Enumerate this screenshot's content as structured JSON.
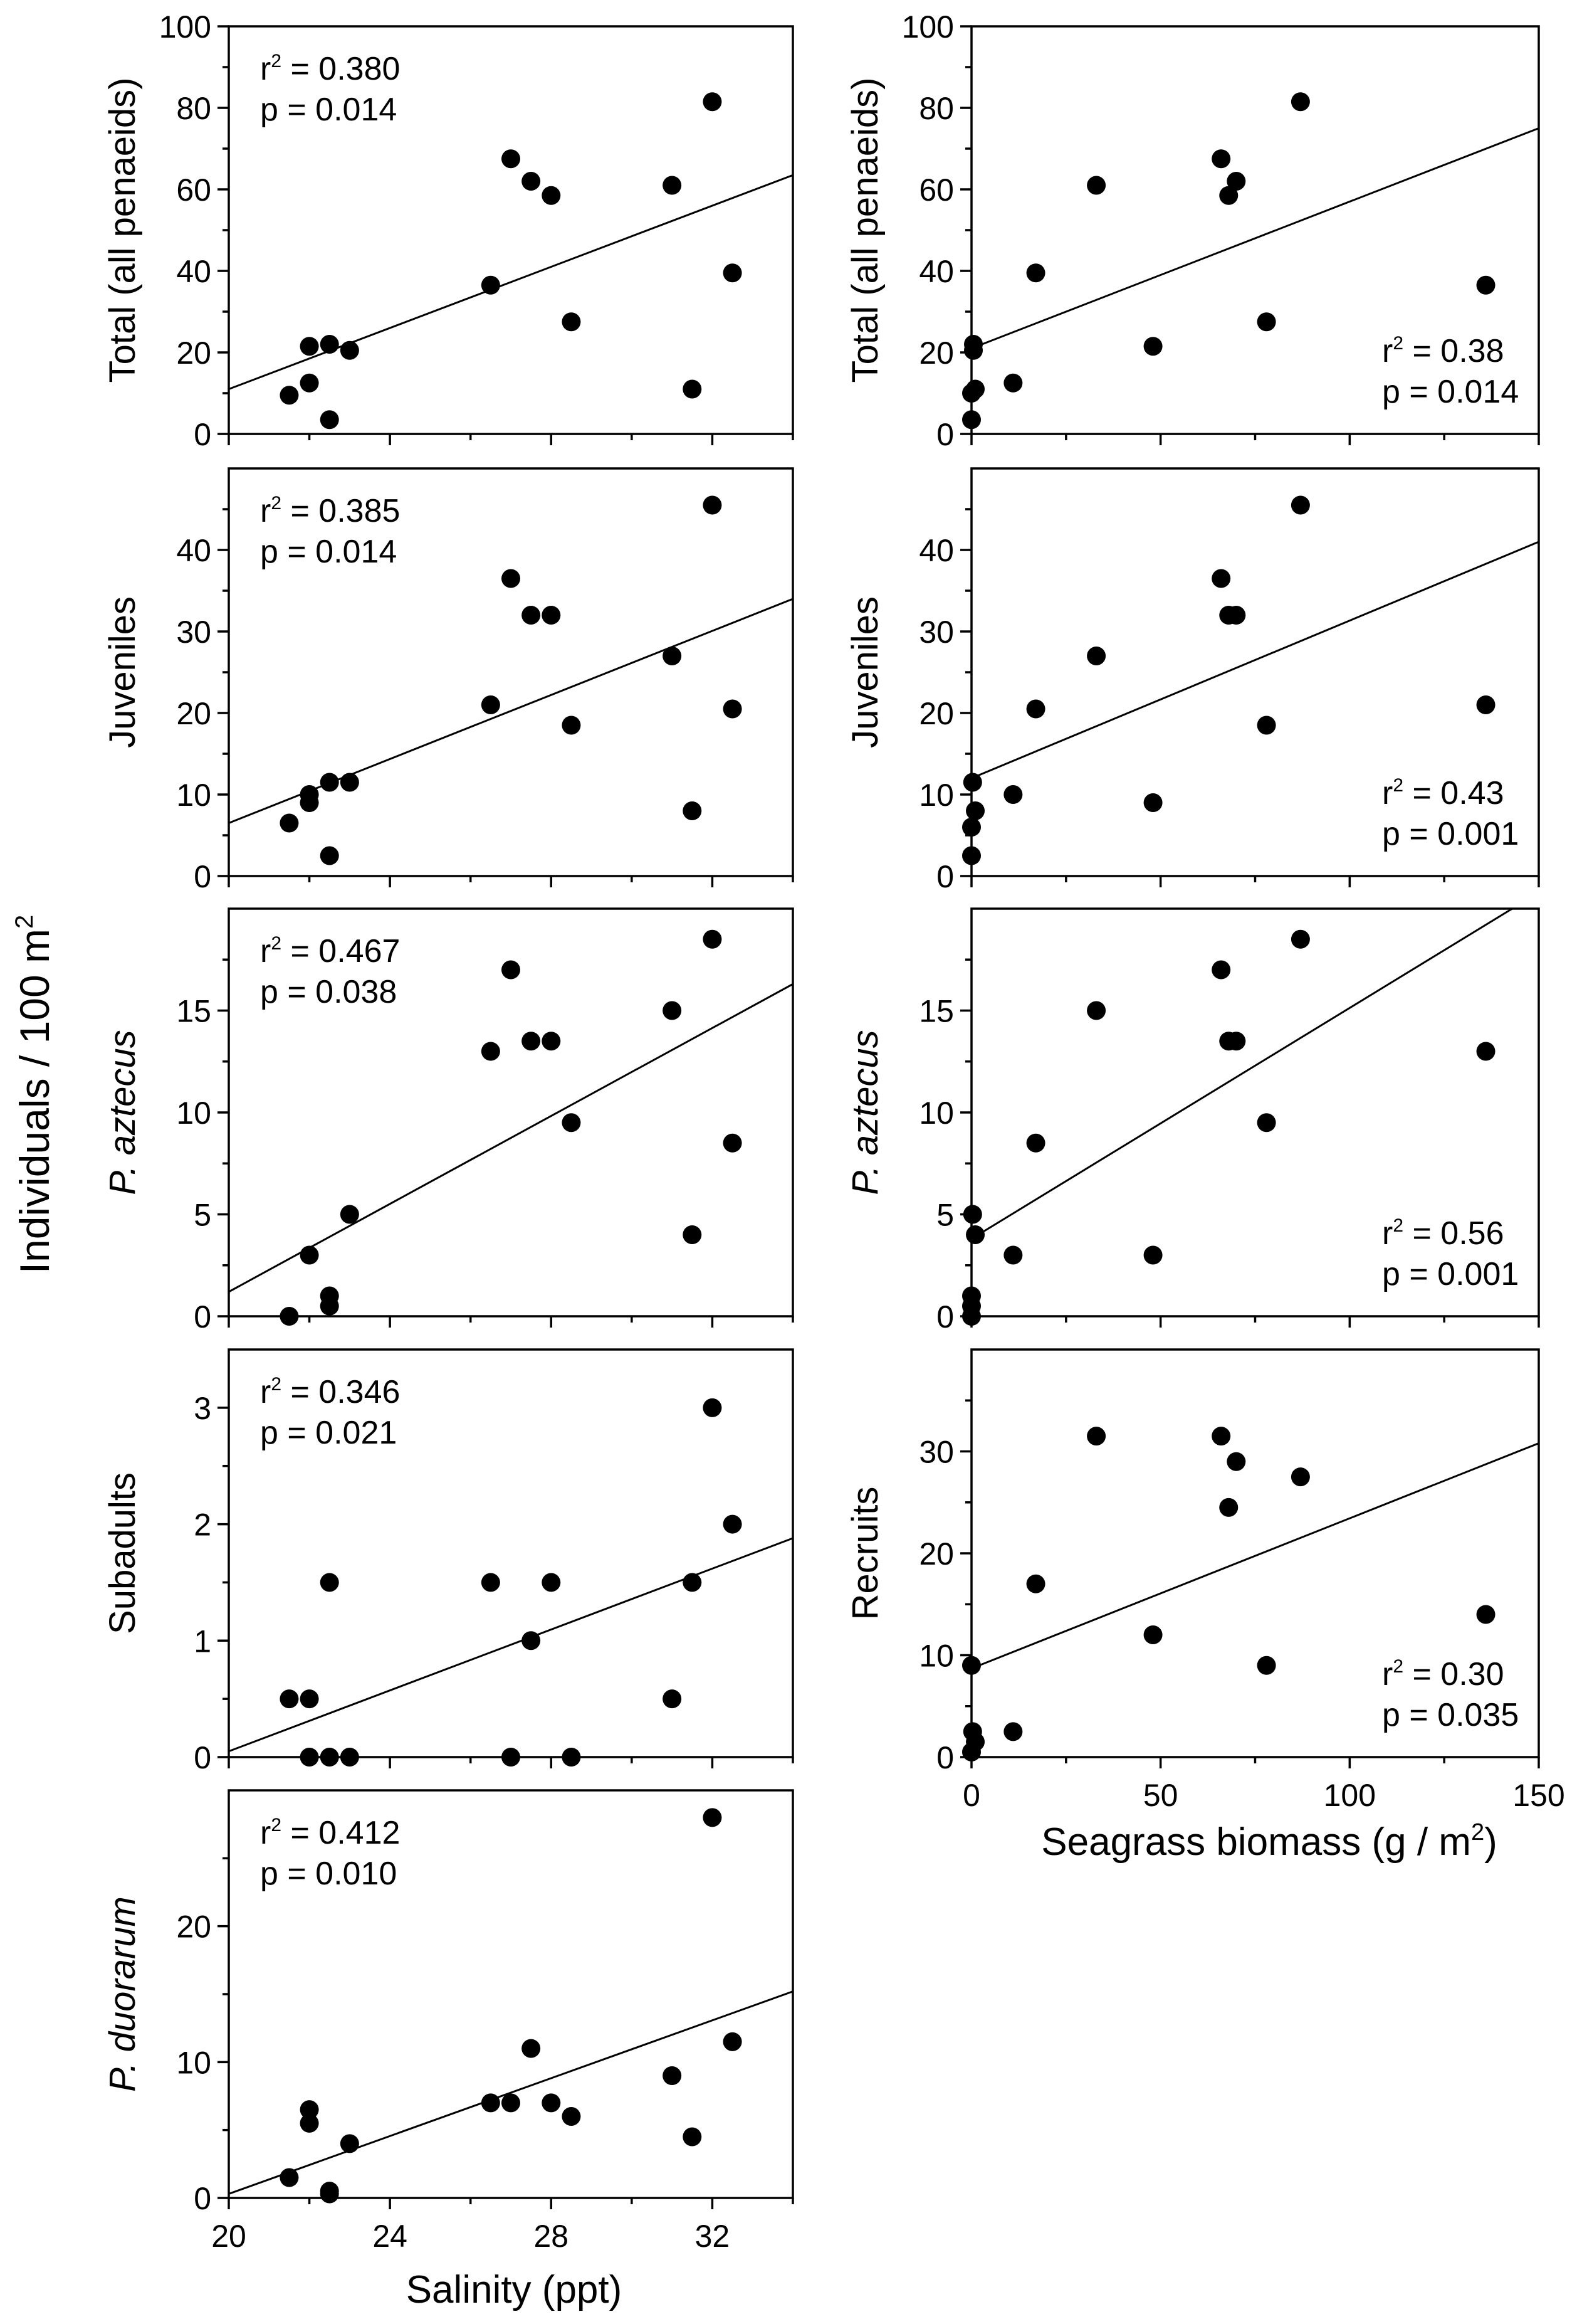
{
  "figure": {
    "shared_ylabel": "Individuals / 100 m",
    "shared_ylabel_sup": "2",
    "salinity_xlabel": "Salinity (ppt)",
    "seagrass_xlabel": "Seagrass biomass (g / m",
    "seagrass_xlabel_sup": "2",
    "seagrass_xlabel_tail": ")"
  },
  "chart_data": [
    {
      "id": "sal-total",
      "type": "scatter",
      "ylabel": "Total (all penaeids)",
      "xlabel": "",
      "xlim": [
        20,
        34
      ],
      "ylim": [
        0,
        100
      ],
      "xticks": [
        20,
        24,
        28,
        32
      ],
      "yticks": [
        0,
        20,
        40,
        60,
        80,
        100
      ],
      "yminor": [
        10,
        30,
        50,
        70,
        90
      ],
      "stat_r2": " = 0.380",
      "stat_p": "p = 0.014",
      "x": [
        21.5,
        22,
        22,
        22.5,
        22.5,
        23,
        26.5,
        27,
        27.5,
        28,
        28.5,
        31,
        31.5,
        32,
        32.5
      ],
      "y": [
        9.5,
        21.5,
        12.5,
        3.5,
        22,
        20.5,
        36.5,
        67.5,
        62,
        58.5,
        27.5,
        61,
        11,
        81.5,
        39.5
      ],
      "fit": [
        [
          20,
          11
        ],
        [
          34,
          63.5
        ]
      ]
    },
    {
      "id": "sal-juv",
      "type": "scatter",
      "ylabel": "Juveniles",
      "xlabel": "",
      "xlim": [
        20,
        34
      ],
      "ylim": [
        0,
        50
      ],
      "xticks": [
        20,
        24,
        28,
        32
      ],
      "yticks": [
        0,
        10,
        20,
        30,
        40
      ],
      "yminor": [
        5,
        15,
        25,
        35,
        45
      ],
      "stat_r2": " = 0.385",
      "stat_p": "p = 0.014",
      "x": [
        21.5,
        22,
        22,
        22.5,
        22.5,
        23,
        26.5,
        27,
        27.5,
        28,
        28.5,
        31,
        31.5,
        32,
        32.5
      ],
      "y": [
        6.5,
        9,
        10,
        2.5,
        11.5,
        11.5,
        21,
        36.5,
        32,
        32,
        18.5,
        27,
        8,
        45.5,
        20.5
      ],
      "fit": [
        [
          20,
          6.5
        ],
        [
          34,
          34
        ]
      ]
    },
    {
      "id": "sal-pazt",
      "type": "scatter",
      "ylabel": "P. aztecus",
      "ylabel_italic": true,
      "xlabel": "",
      "xlim": [
        20,
        34
      ],
      "ylim": [
        0,
        20
      ],
      "xticks": [
        20,
        24,
        28,
        32
      ],
      "yticks": [
        0,
        5,
        10,
        15
      ],
      "yminor": [
        2.5,
        7.5,
        12.5,
        17.5
      ],
      "stat_r2": " = 0.467",
      "stat_p": "p = 0.038",
      "x": [
        21.5,
        22,
        22.5,
        22.5,
        23,
        26.5,
        27,
        27.5,
        28,
        28.5,
        31,
        31.5,
        32,
        32.5
      ],
      "y": [
        0,
        3,
        0.5,
        1,
        5,
        13,
        17,
        13.5,
        13.5,
        9.5,
        15,
        4,
        18.5,
        8.5
      ],
      "fit": [
        [
          20,
          1.2
        ],
        [
          34,
          16.3
        ]
      ]
    },
    {
      "id": "sal-sub",
      "type": "scatter",
      "ylabel": "Subadults",
      "xlabel": "",
      "xlim": [
        20,
        34
      ],
      "ylim": [
        0,
        3.5
      ],
      "xticks": [
        20,
        24,
        28,
        32
      ],
      "yticks": [
        0,
        1,
        2,
        3
      ],
      "yminor": [
        0.5,
        1.5,
        2.5
      ],
      "stat_r2": " = 0.346",
      "stat_p": "p = 0.021",
      "x": [
        21.5,
        22,
        22,
        22.5,
        22.5,
        23,
        26.5,
        27,
        27.5,
        28,
        28.5,
        31,
        31.5,
        32,
        32.5
      ],
      "y": [
        0.5,
        0.5,
        0,
        0,
        1.5,
        0,
        1.5,
        0,
        1,
        1.5,
        0,
        0.5,
        1.5,
        3,
        2
      ],
      "fit": [
        [
          20,
          0.05
        ],
        [
          34,
          1.88
        ]
      ]
    },
    {
      "id": "sal-pduo",
      "type": "scatter",
      "ylabel": "P. duorarum",
      "ylabel_italic": true,
      "xlabel": "Salinity (ppt)",
      "xlim": [
        20,
        34
      ],
      "ylim": [
        0,
        30
      ],
      "xticks": [
        20,
        24,
        28,
        32
      ],
      "yticks": [
        0,
        10,
        20
      ],
      "yminor": [
        5,
        15,
        25
      ],
      "stat_r2": " = 0.412",
      "stat_p": "p = 0.010",
      "x": [
        21.5,
        22,
        22,
        22.5,
        22.5,
        23,
        26.5,
        27,
        27.5,
        28,
        28.5,
        31,
        31.5,
        32,
        32.5
      ],
      "y": [
        1.5,
        6.5,
        5.5,
        0.5,
        0.3,
        4,
        7,
        7,
        11,
        7,
        6,
        9,
        4.5,
        28,
        11.5
      ],
      "fit": [
        [
          20,
          0.3
        ],
        [
          34,
          15.2
        ]
      ]
    },
    {
      "id": "sg-total",
      "type": "scatter",
      "ylabel": "Total (all penaeids)",
      "xlabel": "",
      "xlim": [
        0,
        150
      ],
      "ylim": [
        0,
        100
      ],
      "xticks": [
        0,
        50,
        100,
        150
      ],
      "yticks": [
        0,
        20,
        40,
        60,
        80,
        100
      ],
      "yminor": [
        10,
        30,
        50,
        70,
        90
      ],
      "stat_r2": " = 0.38",
      "stat_p": "p = 0.014",
      "x": [
        0,
        0,
        0.5,
        0.5,
        1,
        11,
        17,
        33,
        48,
        66,
        68,
        70,
        78,
        87,
        136
      ],
      "y": [
        3.5,
        10,
        20.5,
        22,
        11,
        12.5,
        39.5,
        61,
        21.5,
        67.5,
        58.5,
        62,
        27.5,
        81.5,
        36.5
      ],
      "fit": [
        [
          0,
          21
        ],
        [
          150,
          75
        ]
      ]
    },
    {
      "id": "sg-juv",
      "type": "scatter",
      "ylabel": "Juveniles",
      "xlabel": "",
      "xlim": [
        0,
        150
      ],
      "ylim": [
        0,
        50
      ],
      "xticks": [
        0,
        50,
        100,
        150
      ],
      "yticks": [
        0,
        10,
        20,
        30,
        40
      ],
      "yminor": [
        5,
        15,
        25,
        35,
        45
      ],
      "stat_r2": " = 0.43",
      "stat_p": "p = 0.001",
      "x": [
        0,
        0,
        0.3,
        1,
        11,
        17,
        33,
        48,
        66,
        68,
        70,
        78,
        87,
        136
      ],
      "y": [
        2.5,
        6,
        11.5,
        8,
        10,
        20.5,
        27,
        9,
        36.5,
        32,
        32,
        18.5,
        45.5,
        21
      ],
      "fit": [
        [
          0,
          12
        ],
        [
          150,
          41
        ]
      ]
    },
    {
      "id": "sg-pazt",
      "type": "scatter",
      "ylabel": "P. aztecus",
      "ylabel_italic": true,
      "xlabel": "",
      "xlim": [
        0,
        150
      ],
      "ylim": [
        0,
        20
      ],
      "xticks": [
        0,
        50,
        100,
        150
      ],
      "yticks": [
        0,
        5,
        10,
        15
      ],
      "yminor": [
        2.5,
        7.5,
        12.5,
        17.5
      ],
      "stat_r2": " = 0.56",
      "stat_p": "p = 0.001",
      "x": [
        0,
        0,
        0,
        0.3,
        1,
        11,
        17,
        33,
        48,
        66,
        68,
        70,
        78,
        87,
        136
      ],
      "y": [
        0,
        0.5,
        1,
        5,
        4,
        3,
        8.5,
        15,
        3,
        17,
        13.5,
        13.5,
        9.5,
        18.5,
        13
      ],
      "fit": [
        [
          0,
          3.8
        ],
        [
          143,
          20
        ]
      ]
    },
    {
      "id": "sg-recr",
      "type": "scatter",
      "ylabel": "Recruits",
      "xlabel": "Seagrass biomass (g / m²)",
      "xlim": [
        0,
        150
      ],
      "ylim": [
        0,
        40
      ],
      "xticks": [
        0,
        50,
        100,
        150
      ],
      "yticks": [
        0,
        10,
        20,
        30
      ],
      "yminor": [
        5,
        15,
        25,
        35
      ],
      "stat_r2": " = 0.30",
      "stat_p": "p = 0.035",
      "x": [
        0,
        0,
        0.3,
        1,
        11,
        17,
        33,
        48,
        66,
        68,
        70,
        78,
        87,
        136
      ],
      "y": [
        0.5,
        9,
        2.5,
        1.5,
        2.5,
        17,
        31.5,
        12,
        31.5,
        24.5,
        29,
        9,
        27.5,
        14
      ],
      "fit": [
        [
          0,
          8.7
        ],
        [
          150,
          30.8
        ]
      ]
    }
  ]
}
